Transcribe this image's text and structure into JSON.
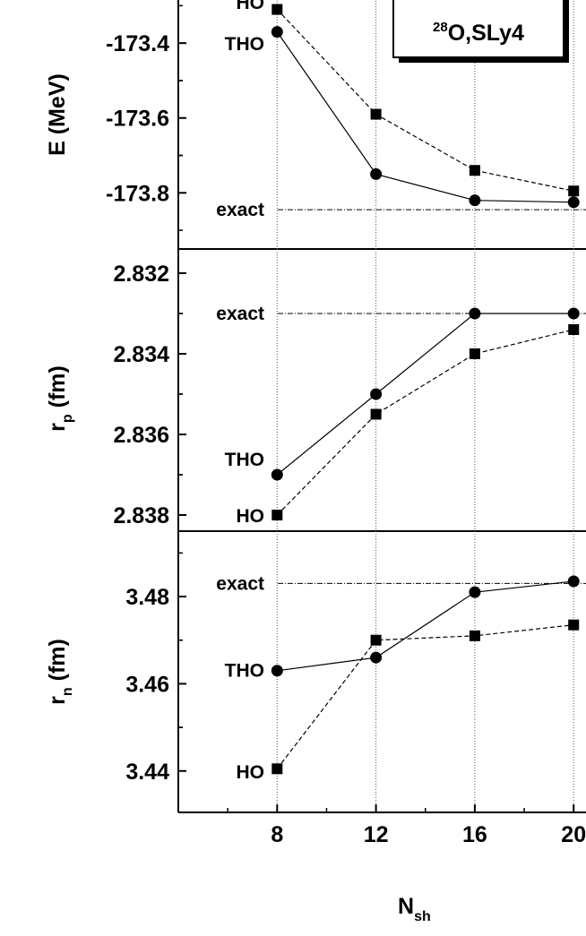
{
  "figure": {
    "box_label": {
      "sup": "28",
      "text": "O,SLy4"
    },
    "xlabel": {
      "main": "N",
      "sub": "sh"
    },
    "x_ticks": [
      "8",
      "12",
      "16",
      "20"
    ]
  },
  "chart_data": [
    {
      "type": "line",
      "panel": "energy",
      "ylabel": {
        "main": "E (MeV)",
        "sub": ""
      },
      "x": [
        8,
        12,
        16,
        20
      ],
      "xlim": [
        4,
        20.5
      ],
      "ylim": [
        -173.95,
        -173.28
      ],
      "y_ticks": [
        -173.4,
        -173.6,
        -173.8
      ],
      "y_tick_labels": [
        "-173.4",
        "-173.6",
        "-173.8"
      ],
      "series": [
        {
          "name": "HO",
          "marker": "square",
          "dash": "dashed",
          "values": [
            -173.31,
            -173.59,
            -173.74,
            -173.795
          ]
        },
        {
          "name": "THO",
          "marker": "circle",
          "dash": "solid",
          "values": [
            -173.37,
            -173.75,
            -173.82,
            -173.825
          ]
        }
      ],
      "reference": {
        "label": "exact",
        "value": -173.845
      },
      "labels_at_x": {
        "HO": -173.29,
        "THO": -173.4
      }
    },
    {
      "type": "line",
      "panel": "proton-radius",
      "ylabel": {
        "main": "r",
        "sub": "p",
        "rest": " (fm)"
      },
      "x": [
        8,
        12,
        16,
        20
      ],
      "xlim": [
        4,
        20.5
      ],
      "ylim": [
        2.8384,
        2.8314
      ],
      "y_ticks": [
        2.832,
        2.834,
        2.836,
        2.838
      ],
      "y_tick_labels": [
        "2.832",
        "2.834",
        "2.836",
        "2.838"
      ],
      "series": [
        {
          "name": "HO",
          "marker": "square",
          "dash": "dashed",
          "values": [
            2.838,
            2.8355,
            2.834,
            2.8334
          ]
        },
        {
          "name": "THO",
          "marker": "circle",
          "dash": "solid",
          "values": [
            2.837,
            2.835,
            2.833,
            2.833
          ]
        }
      ],
      "reference": {
        "label": "exact",
        "value": 2.833
      },
      "labels_at_x": {
        "HO": 2.838,
        "THO": 2.8366
      }
    },
    {
      "type": "line",
      "panel": "neutron-radius",
      "ylabel": {
        "main": "r",
        "sub": "n",
        "rest": " (fm)"
      },
      "x": [
        8,
        12,
        16,
        20
      ],
      "xlim": [
        4,
        20.5
      ],
      "ylim": [
        3.4305,
        3.495
      ],
      "y_ticks": [
        3.44,
        3.46,
        3.48
      ],
      "y_tick_labels": [
        "3.44",
        "3.46",
        "3.48"
      ],
      "series": [
        {
          "name": "HO",
          "marker": "square",
          "dash": "dashed",
          "values": [
            3.4405,
            3.47,
            3.471,
            3.4735
          ]
        },
        {
          "name": "THO",
          "marker": "circle",
          "dash": "solid",
          "values": [
            3.463,
            3.466,
            3.481,
            3.4835
          ]
        }
      ],
      "reference": {
        "label": "exact",
        "value": 3.483
      },
      "labels_at_x": {
        "HO": 3.44,
        "THO": 3.4633
      }
    }
  ]
}
